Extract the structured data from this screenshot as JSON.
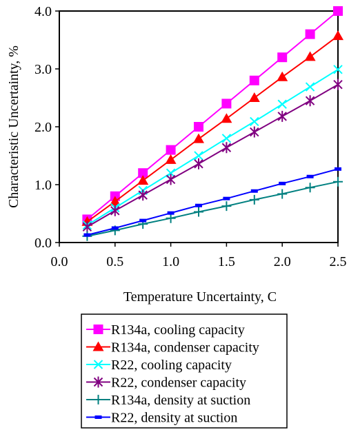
{
  "chart_data": {
    "type": "line",
    "xlabel": "Temperature Uncertainty, C",
    "ylabel": "Characteristic Uncertainty, %",
    "xlim": [
      0.0,
      2.5
    ],
    "ylim": [
      0.0,
      4.0
    ],
    "xticks": [
      "0.0",
      "0.5",
      "1.0",
      "1.5",
      "2.0",
      "2.5"
    ],
    "yticks": [
      "0.0",
      "1.0",
      "2.0",
      "3.0",
      "4.0"
    ],
    "grid": false,
    "legend_position": "bottom",
    "x": [
      0.25,
      0.5,
      0.75,
      1.0,
      1.25,
      1.5,
      1.75,
      2.0,
      2.25,
      2.5
    ],
    "series": [
      {
        "name": "R134a, cooling capacity",
        "color": "#ff00ff",
        "marker": "square",
        "values": [
          0.4,
          0.8,
          1.2,
          1.6,
          2.0,
          2.4,
          2.8,
          3.2,
          3.6,
          4.0
        ]
      },
      {
        "name": "R134a, condenser capacity",
        "color": "#ff0000",
        "marker": "triangle",
        "values": [
          0.36,
          0.71,
          1.07,
          1.43,
          1.79,
          2.14,
          2.5,
          2.86,
          3.21,
          3.57
        ]
      },
      {
        "name": "R22, cooling capacity",
        "color": "#00ffff",
        "marker": "x",
        "values": [
          0.3,
          0.6,
          0.9,
          1.2,
          1.5,
          1.8,
          2.09,
          2.39,
          2.69,
          2.99
        ]
      },
      {
        "name": "R22, condenser capacity",
        "color": "#800080",
        "marker": "asterisk",
        "values": [
          0.27,
          0.55,
          0.82,
          1.09,
          1.36,
          1.64,
          1.91,
          2.18,
          2.45,
          2.73
        ]
      },
      {
        "name": "R134a, density at suction",
        "color": "#008080",
        "marker": "plus",
        "values": [
          0.11,
          0.21,
          0.32,
          0.42,
          0.53,
          0.63,
          0.74,
          0.84,
          0.95,
          1.05
        ]
      },
      {
        "name": "R22, density at suction",
        "color": "#0000ff",
        "marker": "dash",
        "values": [
          0.13,
          0.25,
          0.38,
          0.51,
          0.64,
          0.76,
          0.89,
          1.02,
          1.14,
          1.27
        ]
      }
    ]
  }
}
